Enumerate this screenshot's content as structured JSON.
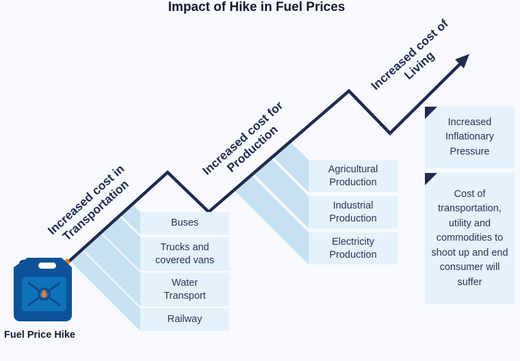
{
  "title": "Impact of Hike in Fuel Prices",
  "start_label": "Fuel Price Hike",
  "stages": [
    {
      "label_line1": "Increased cost in",
      "label_line2": "Transportation",
      "items": [
        "Buses",
        "Trucks and covered vans",
        "Water Transport",
        "Railway"
      ]
    },
    {
      "label_line1": "Increased cost for",
      "label_line2": "Production",
      "items": [
        "Agricultural Production",
        "Industrial Production",
        "Electricity Production"
      ]
    },
    {
      "label_line1": "Increased cost of",
      "label_line2": "Living",
      "items": [
        "Increased Inflationary Pressure",
        "Cost of transportation, utility and commodities to shoot up and end consumer will suffer"
      ]
    }
  ],
  "colors": {
    "line": "#1f2a4f",
    "box": "#e3f2fb",
    "band": "#c5e1f2",
    "can": "#0d5299",
    "can_inner": "#0e72b8",
    "accent": "#e8792c"
  },
  "icons": [
    "fuel-can-icon",
    "arrow-up-right-icon"
  ]
}
